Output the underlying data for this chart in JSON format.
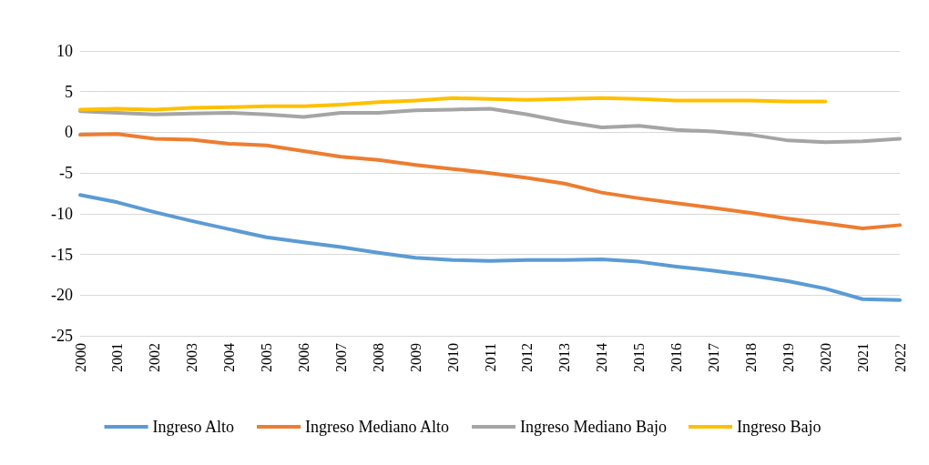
{
  "chart_data": {
    "type": "line",
    "categories": [
      "2000",
      "2001",
      "2002",
      "2003",
      "2004",
      "2005",
      "2006",
      "2007",
      "2008",
      "2009",
      "2010",
      "2011",
      "2012",
      "2013",
      "2014",
      "2015",
      "2016",
      "2017",
      "2018",
      "2019",
      "2020",
      "2021",
      "2022"
    ],
    "series": [
      {
        "name": "Ingreso Alto",
        "color": "#5b9bd5",
        "values": [
          -7.7,
          -8.6,
          -9.8,
          -10.9,
          -11.9,
          -12.9,
          -13.5,
          -14.1,
          -14.8,
          -15.4,
          -15.7,
          -15.8,
          -15.7,
          -15.7,
          -15.6,
          -15.9,
          -16.5,
          -17.0,
          -17.6,
          -18.3,
          -19.2,
          -20.5,
          -20.6
        ]
      },
      {
        "name": "Ingreso Mediano Alto",
        "color": "#ed7d31",
        "values": [
          -0.3,
          -0.2,
          -0.8,
          -0.9,
          -1.4,
          -1.6,
          -2.3,
          -3.0,
          -3.4,
          -4.0,
          -4.5,
          -5.0,
          -5.6,
          -6.3,
          -7.4,
          -8.1,
          -8.7,
          -9.3,
          -9.9,
          -10.6,
          -11.2,
          -11.8,
          -11.4
        ]
      },
      {
        "name": "Ingreso Mediano Bajo",
        "color": "#a5a5a5",
        "values": [
          2.6,
          2.4,
          2.2,
          2.3,
          2.4,
          2.2,
          1.9,
          2.4,
          2.4,
          2.7,
          2.8,
          2.9,
          2.2,
          1.3,
          0.6,
          0.8,
          0.3,
          0.1,
          -0.3,
          -1.0,
          -1.2,
          -1.1,
          -0.8
        ]
      },
      {
        "name": "Ingreso Bajo",
        "color": "#ffc000",
        "values": [
          2.8,
          2.9,
          2.8,
          3.0,
          3.1,
          3.2,
          3.2,
          3.4,
          3.7,
          3.9,
          4.2,
          4.1,
          4.0,
          4.1,
          4.2,
          4.1,
          3.9,
          3.9,
          3.9,
          3.8,
          3.8,
          null,
          null
        ]
      }
    ],
    "ylim": [
      -25,
      10
    ],
    "yticks": [
      -25,
      -20,
      -15,
      -10,
      -5,
      0,
      5,
      10
    ],
    "grid": "y",
    "legend": "bottom",
    "marker": "none",
    "line_style": "solid"
  }
}
